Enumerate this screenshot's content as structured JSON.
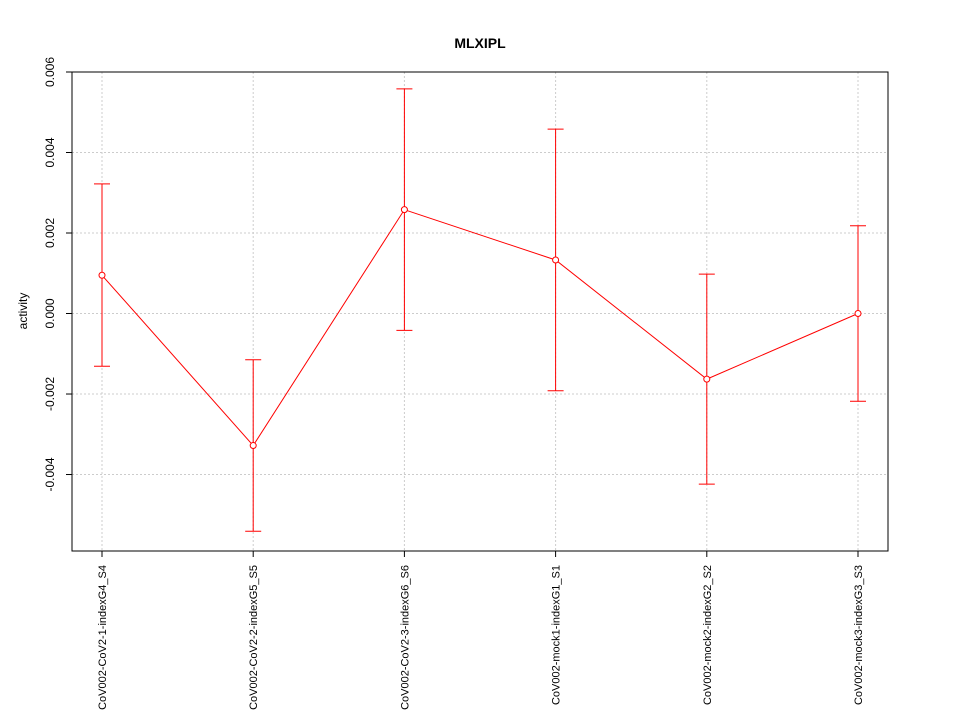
{
  "chart_data": {
    "type": "line",
    "title": "MLXIPL",
    "xlabel": "",
    "ylabel": "activity",
    "categories": [
      "CoV002-CoV2-1-indexG4_S4",
      "CoV002-CoV2-2-indexG5_S5",
      "CoV002-CoV2-3-indexG6_S6",
      "CoV002-mock1-indexG1_S1",
      "CoV002-mock2-indexG2_S2",
      "CoV002-mock3-indexG3_S3"
    ],
    "series": [
      {
        "values": [
          0.00095,
          -0.00328,
          0.00258,
          0.00133,
          -0.00163,
          0.0
        ],
        "upper": [
          0.00322,
          -0.00115,
          0.00558,
          0.00458,
          0.00098,
          0.00218
        ],
        "lower": [
          -0.00131,
          -0.00541,
          -0.00042,
          -0.00192,
          -0.00424,
          -0.00218
        ],
        "color": "#ff0000"
      }
    ],
    "yticks": [
      -0.004,
      -0.002,
      0.0,
      0.002,
      0.004,
      0.006
    ],
    "ytick_labels": [
      "-0.004",
      "-0.002",
      "0.000",
      "0.002",
      "0.004",
      "0.006"
    ],
    "ylim": [
      -0.0059,
      0.006
    ],
    "grid": true,
    "legend": "none"
  }
}
